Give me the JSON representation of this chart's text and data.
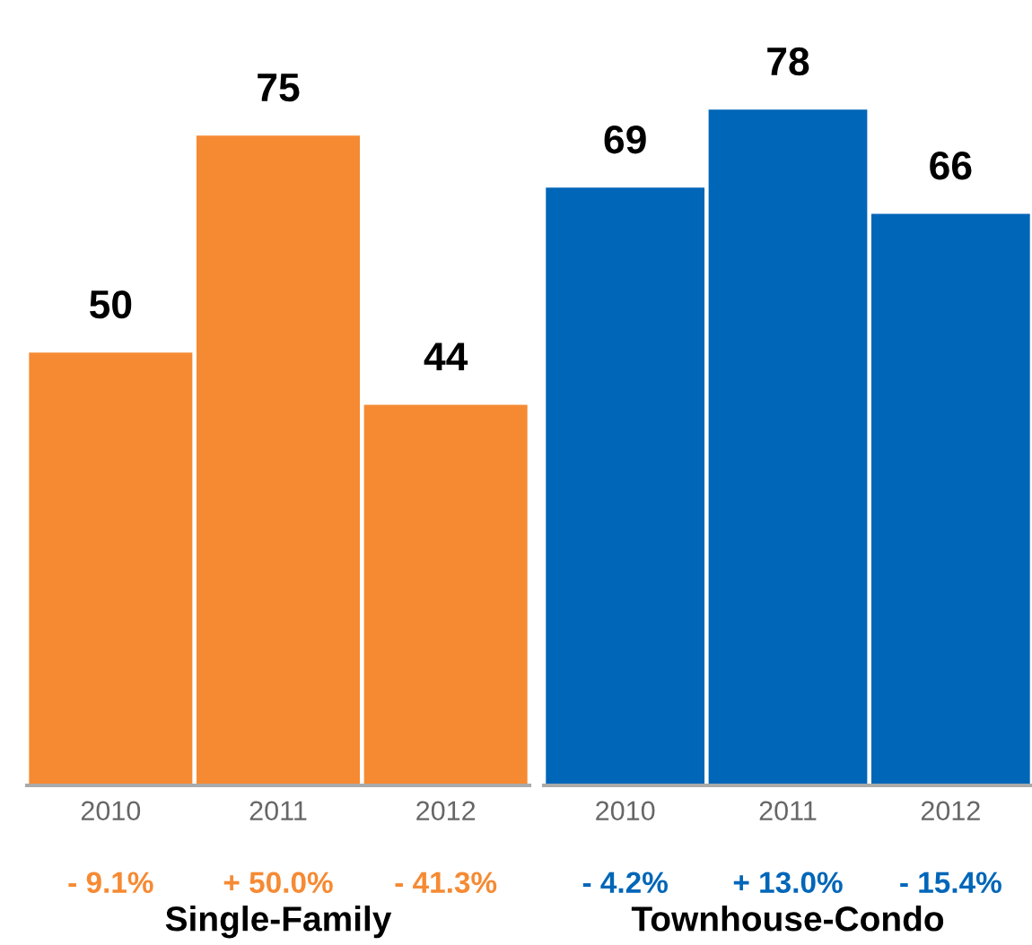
{
  "chart_data": [
    {
      "type": "bar",
      "categories": [
        "2010",
        "2011",
        "2012"
      ],
      "values": [
        50,
        75,
        44
      ],
      "color": "#f68a33",
      "data_labels": true,
      "tick_labels": "x",
      "xlabel": "Single-Family",
      "annotations": [
        "- 9.1%",
        "+ 50.0%",
        "- 41.3%"
      ]
    },
    {
      "type": "bar",
      "categories": [
        "2010",
        "2011",
        "2012"
      ],
      "values": [
        69,
        78,
        66
      ],
      "color": "#0066b8",
      "data_labels": true,
      "tick_labels": "x",
      "xlabel": "Townhouse-Condo",
      "annotations": [
        "- 4.2%",
        "+ 13.0%",
        "- 15.4%"
      ]
    }
  ]
}
